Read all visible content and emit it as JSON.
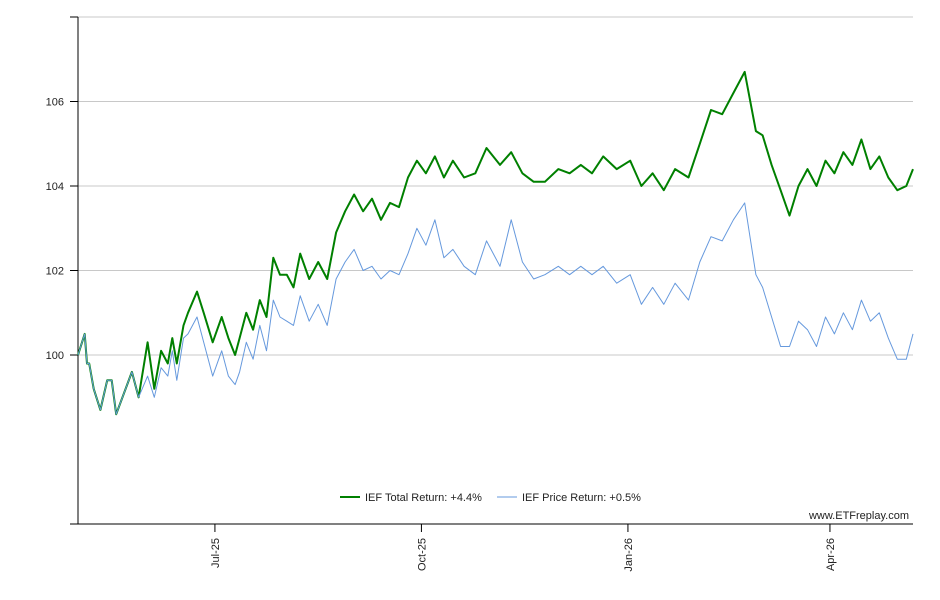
{
  "chart_data": {
    "type": "line",
    "grid": "horizontal",
    "legend_position": "bottom-center",
    "ylim": [
      96.0,
      108.0
    ],
    "yticks": [
      100,
      102,
      104,
      106
    ],
    "ytick_labels": [
      "100",
      "102",
      "104",
      "106"
    ],
    "xlim": [
      "2025-05-01",
      "2026-05-08"
    ],
    "xticks": [
      "2025-07-01",
      "2025-10-01",
      "2026-01-01",
      "2026-04-01"
    ],
    "xtick_labels": [
      "Jul-25",
      "Oct-25",
      "Jan-26",
      "Apr-26"
    ],
    "series": [
      {
        "name": "IEF Total Return: +4.4%",
        "color": "#008000",
        "x": [
          "2025-05-01",
          "2025-05-04",
          "2025-05-05",
          "2025-05-06",
          "2025-05-08",
          "2025-05-11",
          "2025-05-14",
          "2025-05-16",
          "2025-05-18",
          "2025-05-25",
          "2025-05-28",
          "2025-06-01",
          "2025-06-04",
          "2025-06-07",
          "2025-06-10",
          "2025-06-12",
          "2025-06-14",
          "2025-06-17",
          "2025-06-19",
          "2025-06-23",
          "2025-06-26",
          "2025-06-30",
          "2025-07-04",
          "2025-07-07",
          "2025-07-10",
          "2025-07-12",
          "2025-07-15",
          "2025-07-18",
          "2025-07-21",
          "2025-07-24",
          "2025-07-27",
          "2025-07-30",
          "2025-08-02",
          "2025-08-05",
          "2025-08-08",
          "2025-08-12",
          "2025-08-16",
          "2025-08-20",
          "2025-08-24",
          "2025-08-28",
          "2025-09-01",
          "2025-09-05",
          "2025-09-09",
          "2025-09-13",
          "2025-09-17",
          "2025-09-21",
          "2025-09-25",
          "2025-09-29",
          "2025-10-03",
          "2025-10-07",
          "2025-10-11",
          "2025-10-15",
          "2025-10-20",
          "2025-10-25",
          "2025-10-30",
          "2025-11-05",
          "2025-11-10",
          "2025-11-15",
          "2025-11-20",
          "2025-11-25",
          "2025-12-01",
          "2025-12-06",
          "2025-12-11",
          "2025-12-16",
          "2025-12-21",
          "2025-12-27",
          "2026-01-02",
          "2026-01-07",
          "2026-01-12",
          "2026-01-17",
          "2026-01-22",
          "2026-01-28",
          "2026-02-02",
          "2026-02-07",
          "2026-02-12",
          "2026-02-17",
          "2026-02-22",
          "2026-02-27",
          "2026-03-02",
          "2026-03-06",
          "2026-03-10",
          "2026-03-14",
          "2026-03-18",
          "2026-03-22",
          "2026-03-26",
          "2026-03-30",
          "2026-04-03",
          "2026-04-07",
          "2026-04-11",
          "2026-04-15",
          "2026-04-19",
          "2026-04-23",
          "2026-04-27",
          "2026-05-01",
          "2026-05-05",
          "2026-05-08"
        ],
        "y": [
          100.0,
          100.5,
          99.8,
          99.8,
          99.2,
          98.7,
          99.4,
          99.4,
          98.6,
          99.6,
          99.0,
          100.3,
          99.2,
          100.1,
          99.8,
          100.4,
          99.8,
          100.7,
          101.0,
          101.5,
          101.0,
          100.3,
          100.9,
          100.4,
          100.0,
          100.4,
          101.0,
          100.6,
          101.3,
          100.9,
          102.3,
          101.9,
          101.9,
          101.6,
          102.4,
          101.8,
          102.2,
          101.8,
          102.9,
          103.4,
          103.8,
          103.4,
          103.7,
          103.2,
          103.6,
          103.5,
          104.2,
          104.6,
          104.3,
          104.7,
          104.2,
          104.6,
          104.2,
          104.3,
          104.9,
          104.5,
          104.8,
          104.3,
          104.1,
          104.1,
          104.4,
          104.3,
          104.5,
          104.3,
          104.7,
          104.4,
          104.6,
          104.0,
          104.3,
          103.9,
          104.4,
          104.2,
          105.0,
          105.8,
          105.7,
          106.2,
          106.7,
          105.3,
          105.2,
          104.5,
          103.9,
          103.3,
          104.0,
          104.4,
          104.0,
          104.6,
          104.3,
          104.8,
          104.5,
          105.1,
          104.4,
          104.7,
          104.2,
          103.9,
          104.0,
          104.4
        ]
      },
      {
        "name": "IEF Price Return: +0.5%",
        "color": "#6699DD",
        "x": [
          "2025-05-01",
          "2025-05-04",
          "2025-05-05",
          "2025-05-06",
          "2025-05-08",
          "2025-05-11",
          "2025-05-14",
          "2025-05-16",
          "2025-05-18",
          "2025-05-25",
          "2025-05-28",
          "2025-06-01",
          "2025-06-04",
          "2025-06-07",
          "2025-06-10",
          "2025-06-12",
          "2025-06-14",
          "2025-06-17",
          "2025-06-19",
          "2025-06-23",
          "2025-06-26",
          "2025-06-30",
          "2025-07-04",
          "2025-07-07",
          "2025-07-10",
          "2025-07-12",
          "2025-07-15",
          "2025-07-18",
          "2025-07-21",
          "2025-07-24",
          "2025-07-27",
          "2025-07-30",
          "2025-08-02",
          "2025-08-05",
          "2025-08-08",
          "2025-08-12",
          "2025-08-16",
          "2025-08-20",
          "2025-08-24",
          "2025-08-28",
          "2025-09-01",
          "2025-09-05",
          "2025-09-09",
          "2025-09-13",
          "2025-09-17",
          "2025-09-21",
          "2025-09-25",
          "2025-09-29",
          "2025-10-03",
          "2025-10-07",
          "2025-10-11",
          "2025-10-15",
          "2025-10-20",
          "2025-10-25",
          "2025-10-30",
          "2025-11-05",
          "2025-11-10",
          "2025-11-15",
          "2025-11-20",
          "2025-11-25",
          "2025-12-01",
          "2025-12-06",
          "2025-12-11",
          "2025-12-16",
          "2025-12-21",
          "2025-12-27",
          "2026-01-02",
          "2026-01-07",
          "2026-01-12",
          "2026-01-17",
          "2026-01-22",
          "2026-01-28",
          "2026-02-02",
          "2026-02-07",
          "2026-02-12",
          "2026-02-17",
          "2026-02-22",
          "2026-02-27",
          "2026-03-02",
          "2026-03-06",
          "2026-03-10",
          "2026-03-14",
          "2026-03-18",
          "2026-03-22",
          "2026-03-26",
          "2026-03-30",
          "2026-04-03",
          "2026-04-07",
          "2026-04-11",
          "2026-04-15",
          "2026-04-19",
          "2026-04-23",
          "2026-04-27",
          "2026-05-01",
          "2026-05-05",
          "2026-05-08"
        ],
        "y": [
          100.0,
          100.5,
          99.8,
          99.8,
          99.2,
          98.7,
          99.4,
          99.4,
          98.6,
          99.6,
          99.0,
          99.5,
          99.0,
          99.7,
          99.5,
          100.1,
          99.4,
          100.4,
          100.5,
          100.9,
          100.3,
          99.5,
          100.1,
          99.5,
          99.3,
          99.6,
          100.3,
          99.9,
          100.7,
          100.1,
          101.3,
          100.9,
          100.8,
          100.7,
          101.4,
          100.8,
          101.2,
          100.7,
          101.8,
          102.2,
          102.5,
          102.0,
          102.1,
          101.8,
          102.0,
          101.9,
          102.4,
          103.0,
          102.6,
          103.2,
          102.3,
          102.5,
          102.1,
          101.9,
          102.7,
          102.1,
          103.2,
          102.2,
          101.8,
          101.9,
          102.1,
          101.9,
          102.1,
          101.9,
          102.1,
          101.7,
          101.9,
          101.2,
          101.6,
          101.2,
          101.7,
          101.3,
          102.2,
          102.8,
          102.7,
          103.2,
          103.6,
          101.9,
          101.6,
          100.9,
          100.2,
          100.2,
          100.8,
          100.6,
          100.2,
          100.9,
          100.5,
          101.0,
          100.6,
          101.3,
          100.8,
          101.0,
          100.4,
          99.9,
          99.9,
          100.5
        ]
      }
    ],
    "watermark": "www.ETFreplay.com"
  }
}
